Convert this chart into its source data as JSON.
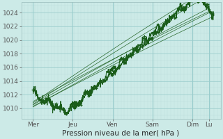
{
  "background_color": "#cceae7",
  "plot_bg_color": "#cceae7",
  "grid_major_color": "#99cccc",
  "grid_minor_color": "#bbdddd",
  "line_color": "#1a5c1a",
  "title": "Pression niveau de la mer( hPa )",
  "ylabel_values": [
    1010,
    1012,
    1014,
    1016,
    1018,
    1020,
    1022,
    1024
  ],
  "ylim": [
    1008.5,
    1025.5
  ],
  "xlim": [
    0,
    120
  ],
  "xtick_positions": [
    7,
    31,
    55,
    79,
    103,
    113
  ],
  "xtick_labels": [
    "Mer",
    "Jeu",
    "Ven",
    "Sam",
    "Dim",
    "Lu"
  ],
  "vline_major_positions": [
    7,
    31,
    55,
    79,
    103,
    113
  ],
  "title_fontsize": 7.5,
  "tick_fontsize": 6.5
}
